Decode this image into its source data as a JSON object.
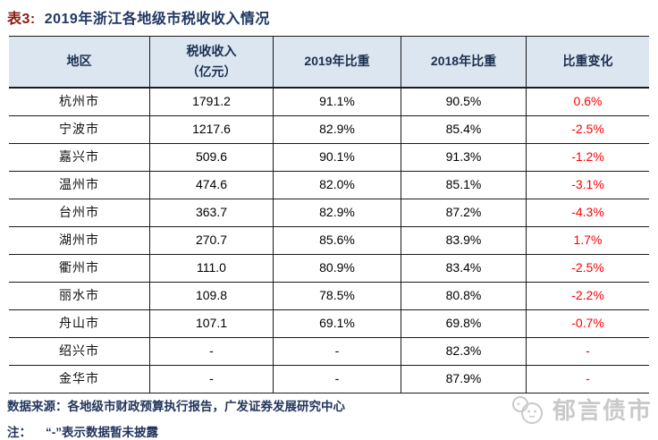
{
  "title": {
    "prefix": "表3:",
    "text": "2019年浙江各地级市税收收入情况"
  },
  "table": {
    "headers": {
      "region": "地区",
      "revenue_line1": "税收收入",
      "revenue_line2": "（亿元）",
      "share_2019": "2019年比重",
      "share_2018": "2018年比重",
      "change": "比重变化"
    },
    "rows": [
      {
        "region": "杭州市",
        "revenue": "1791.2",
        "share_2019": "91.1%",
        "share_2018": "90.5%",
        "change": "0.6%"
      },
      {
        "region": "宁波市",
        "revenue": "1217.6",
        "share_2019": "82.9%",
        "share_2018": "85.4%",
        "change": "-2.5%"
      },
      {
        "region": "嘉兴市",
        "revenue": "509.6",
        "share_2019": "90.1%",
        "share_2018": "91.3%",
        "change": "-1.2%"
      },
      {
        "region": "温州市",
        "revenue": "474.6",
        "share_2019": "82.0%",
        "share_2018": "85.1%",
        "change": "-3.1%"
      },
      {
        "region": "台州市",
        "revenue": "363.7",
        "share_2019": "82.9%",
        "share_2018": "87.2%",
        "change": "-4.3%"
      },
      {
        "region": "湖州市",
        "revenue": "270.7",
        "share_2019": "85.6%",
        "share_2018": "83.9%",
        "change": "1.7%"
      },
      {
        "region": "衢州市",
        "revenue": "111.0",
        "share_2019": "80.9%",
        "share_2018": "83.4%",
        "change": "-2.5%"
      },
      {
        "region": "丽水市",
        "revenue": "109.8",
        "share_2019": "78.5%",
        "share_2018": "80.8%",
        "change": "-2.2%"
      },
      {
        "region": "舟山市",
        "revenue": "107.1",
        "share_2019": "69.1%",
        "share_2018": "69.8%",
        "change": "-0.7%"
      },
      {
        "region": "绍兴市",
        "revenue": "-",
        "share_2019": "-",
        "share_2018": "82.3%",
        "change": "-"
      },
      {
        "region": "金华市",
        "revenue": "-",
        "share_2019": "-",
        "share_2018": "87.9%",
        "change": "-"
      }
    ]
  },
  "footer": {
    "source_label": "数据来源：",
    "source_text": "各地级市财政预算执行报告，广发证券发展研究中心",
    "note_label": "注：",
    "note_text": "“-”表示数据暂未披露"
  },
  "watermark": {
    "icon": "chat-bubbles-icon",
    "text": "郁言债市"
  },
  "colors": {
    "title_prefix_red": "#8c1b10",
    "title_navy": "#1f3864",
    "header_bg": "#dce6f1",
    "header_text": "#1b2f4e",
    "border": "#1a1a1a",
    "change_red": "#ff0000",
    "footer_navy": "#22355e",
    "watermark_gray": "#c9c9c9"
  }
}
